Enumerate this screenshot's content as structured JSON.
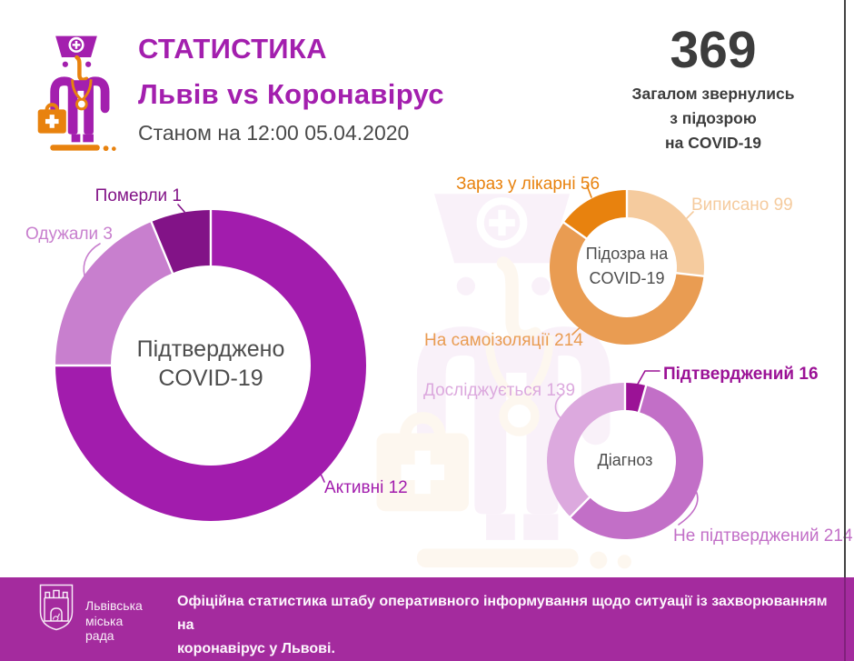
{
  "header": {
    "title": "СТАТИСТИКА",
    "subtitle": "Львів vs Коронавірус",
    "date_line": "Станом на 12:00 05.04.2020",
    "icon": "doctor-icon"
  },
  "summary": {
    "value": "369",
    "caption_lines": [
      "Загалом звернулись",
      "з підозрою",
      "на COVID-19"
    ]
  },
  "chart_data": [
    {
      "type": "donut",
      "name": "confirmed-covid19-donut",
      "title": "Підтверджено COVID-19",
      "center_lines": [
        "Підтверджено",
        "COVID-19"
      ],
      "total": 16,
      "slices": [
        {
          "label": "Активні",
          "value": 12,
          "color": "#A21CAD",
          "callout": "Активні 12"
        },
        {
          "label": "Одужали",
          "value": 3,
          "color": "#C87FCE",
          "callout": "Одужали 3"
        },
        {
          "label": "Померли",
          "value": 1,
          "color": "#821387",
          "callout": "Померли 1"
        }
      ]
    },
    {
      "type": "donut",
      "name": "suspected-covid19-donut",
      "title": "Підозра на COVID-19",
      "center_lines": [
        "Підозра на",
        "COVID-19"
      ],
      "total": 369,
      "slices": [
        {
          "label": "Виписано",
          "value": 99,
          "color": "#F5CB9E",
          "callout": "Виписано 99"
        },
        {
          "label": "На самоізоляції",
          "value": 214,
          "color": "#E99C52",
          "callout": "На самоізоляції 214"
        },
        {
          "label": "Зараз у лікарні",
          "value": 56,
          "color": "#E8820E",
          "callout": "Зараз у лікарні 56"
        }
      ]
    },
    {
      "type": "donut",
      "name": "diagnosis-donut",
      "title": "Діагноз",
      "center_lines": [
        "Діагноз"
      ],
      "total": 369,
      "slices": [
        {
          "label": "Підтверджений",
          "value": 16,
          "color": "#9B1296",
          "callout": "Підтверджений 16"
        },
        {
          "label": "Не підтверджений",
          "value": 214,
          "color": "#C26FC7",
          "callout": "Не підтверджений 214"
        },
        {
          "label": "Досліджується",
          "value": 139,
          "color": "#DCA9DE",
          "callout": "Досліджується 139"
        }
      ]
    }
  ],
  "colors": {
    "accent_purple": "#A31FAE",
    "accent_orange": "#E8820E",
    "footer_bg": "#A42B9E",
    "text_dark": "#3C3C3C"
  },
  "footer": {
    "org_icon": "lviv-coat-of-arms",
    "org_lines": [
      "Львівська",
      "міська",
      "рада"
    ],
    "note_lines": [
      "Офіційна статистика штабу оперативного інформування щодо ситуації із захворюванням на",
      "коронавірус у Львові."
    ]
  }
}
